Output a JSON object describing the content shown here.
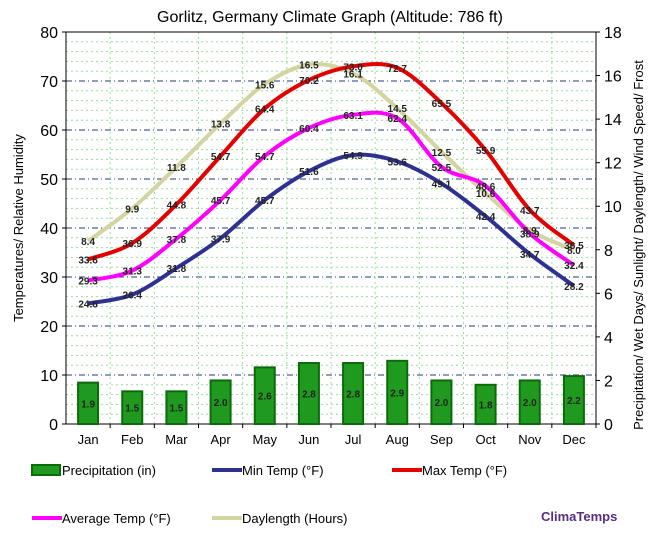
{
  "chart_data": {
    "type": "bar+line",
    "title": "Gorlitz, Germany Climate Graph (Altitude: 786 ft)",
    "ylabel_left": "Temperatures/ Relative Humidity",
    "ylabel_right": "Precipitation/ Wet Days/ Sunlight/ Daylength/ Wind Speed/ Frost",
    "ylim_left": [
      0,
      80
    ],
    "ylim_right": [
      0,
      18
    ],
    "yticks_left": [
      "0",
      "10",
      "20",
      "30",
      "40",
      "50",
      "60",
      "70",
      "80"
    ],
    "yticks_right": [
      "0",
      "2",
      "4",
      "6",
      "8",
      "10",
      "12",
      "14",
      "16",
      "18"
    ],
    "categories": [
      "Jan",
      "Feb",
      "Mar",
      "Apr",
      "May",
      "Jun",
      "Jul",
      "Aug",
      "Sep",
      "Oct",
      "Nov",
      "Dec"
    ],
    "series": [
      {
        "name": "Precipitation (in)",
        "type": "bar",
        "axis": "right",
        "color": "#1f9a1f",
        "values": [
          1.9,
          1.5,
          1.5,
          2.0,
          2.6,
          2.8,
          2.8,
          2.9,
          2.0,
          1.8,
          2.0,
          2.2
        ],
        "labels": [
          "1.9",
          "1.5",
          "1.5",
          "2.0",
          "2.6",
          "2.8",
          "2.8",
          "2.9",
          "2.0",
          "1.8",
          "2.0",
          "2.2"
        ]
      },
      {
        "name": "Min Temp (°F)",
        "type": "line",
        "axis": "left",
        "color": "#2e3192",
        "values": [
          24.6,
          26.4,
          31.8,
          37.9,
          45.7,
          51.6,
          54.9,
          53.6,
          49.1,
          42.4,
          34.7,
          28.2
        ],
        "labels": [
          "24.6",
          "26.4",
          "31.8",
          "37.9",
          "45.7",
          "51.6",
          "54.9",
          "53.6",
          "49.1",
          "42.4",
          "34.7",
          "28.2"
        ]
      },
      {
        "name": "Max Temp (°F)",
        "type": "line",
        "axis": "left",
        "color": "#e60000",
        "values": [
          33.6,
          36.9,
          44.8,
          54.7,
          64.4,
          70.2,
          73.0,
          72.7,
          65.5,
          55.9,
          43.7,
          36.5
        ],
        "labels": [
          "33.6",
          "36.9",
          "44.8",
          "54.7",
          "64.4",
          "70.2",
          "73.0",
          "72.7",
          "65.5",
          "55.9",
          "43.7",
          "36.5"
        ]
      },
      {
        "name": "Average Temp (°F)",
        "type": "line",
        "axis": "left",
        "color": "#ff00ff",
        "values": [
          29.3,
          31.3,
          37.8,
          45.7,
          54.7,
          60.4,
          63.1,
          62.4,
          52.5,
          48.6,
          38.9,
          32.4
        ],
        "labels": [
          "29.3",
          "31.3",
          "37.8",
          "45.7",
          "54.7",
          "60.4",
          "63.1",
          "62.4",
          "52.5",
          "48.6",
          "38.9",
          "32.4"
        ]
      },
      {
        "name": "Daylength (Hours)",
        "type": "line",
        "axis": "right",
        "color": "#d4d4a0",
        "values": [
          8.4,
          9.9,
          11.8,
          13.8,
          15.6,
          16.5,
          16.1,
          14.5,
          12.5,
          10.6,
          8.9,
          8.0
        ],
        "labels": [
          "8.4",
          "9.9",
          "11.8",
          "13.8",
          "15.6",
          "16.5",
          "16.1",
          "14.5",
          "12.5",
          "10.6",
          "8.9",
          "8.0"
        ]
      }
    ],
    "brand": "ClimaTemps"
  }
}
